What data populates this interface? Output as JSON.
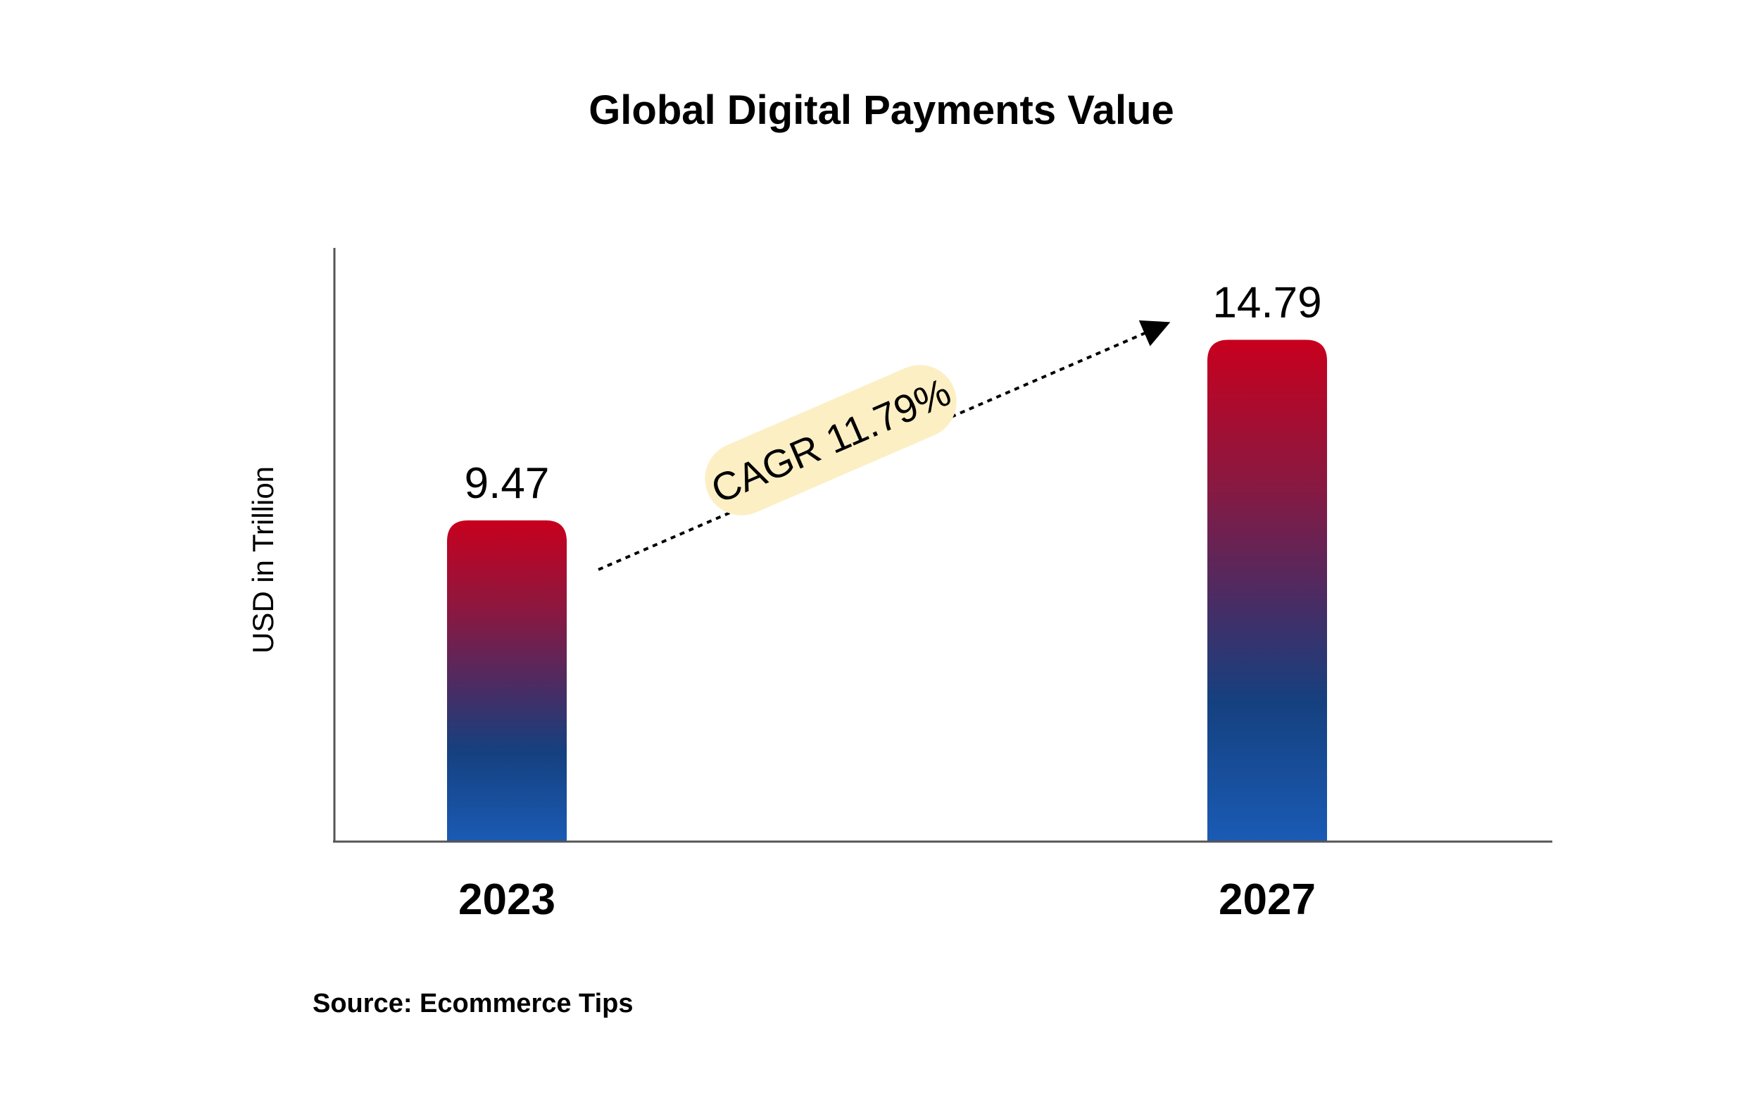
{
  "chart_data": {
    "type": "bar",
    "title": "Global Digital Payments Value",
    "ylabel": "USD in Trillion",
    "xlabel": "",
    "categories": [
      "2023",
      "2027"
    ],
    "values": [
      9.47,
      14.79
    ],
    "data_labels": [
      "9.47",
      "14.79"
    ],
    "ylim": [
      0,
      17.5
    ],
    "grid": false,
    "legend": "none",
    "annotation": {
      "text": "CAGR 11.79%",
      "from": "2023",
      "to": "2027"
    },
    "source": "Source: Ecommerce Tips",
    "colors": {
      "bar_top": "#c8001e",
      "bar_mid_top": "#8b1840",
      "bar_mid": "#4a2c64",
      "bar_mid_low": "#15407f",
      "bar_bottom": "#1a5bb5",
      "annotation_bg": "#fcefc4",
      "axis": "#555555"
    }
  }
}
